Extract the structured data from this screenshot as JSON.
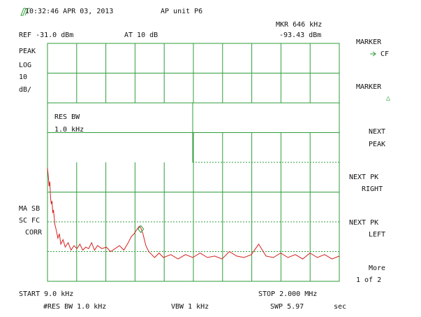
{
  "header": {
    "timestamp": "10:32:46 APR 03, 2013",
    "title": "AP unit P6",
    "marker_readout": "MKR 646 kHz",
    "ref": "REF -31.0 dBm",
    "atten": "AT 10 dB",
    "marker_level": "-93.43 dBm"
  },
  "left_labels": [
    "PEAK",
    "LOG",
    "10",
    "dB/",
    "MA SB",
    "SC FC",
    "CORR"
  ],
  "annotation": [
    "RES BW",
    "1.0 kHz"
  ],
  "softkeys": [
    [
      "MARKER",
      "CF"
    ],
    [
      "MARKER",
      "△"
    ],
    [
      "NEXT",
      "PEAK"
    ],
    [
      "NEXT PK",
      "RIGHT"
    ],
    [
      "NEXT PK",
      "LEFT"
    ],
    [
      "More",
      "1 of 2"
    ]
  ],
  "footer": {
    "start": "START 9.0 kHz",
    "stop": "STOP 2.000 MHz",
    "rbw": "#RES BW 1.0 kHz",
    "vbw": "VBW 1 kHz",
    "sweep": "SWP 5.97",
    "sweep_unit": "sec"
  },
  "trace": {
    "color": "#d42020",
    "xlim": [
      9,
      2000
    ],
    "ylim": [
      -111,
      -31
    ],
    "marker": {
      "x": 646,
      "y": -93.43
    },
    "x": [
      9,
      15,
      20,
      25,
      30,
      35,
      40,
      45,
      50,
      60,
      70,
      80,
      90,
      100,
      115,
      130,
      150,
      170,
      190,
      210,
      230,
      250,
      270,
      290,
      310,
      330,
      350,
      380,
      410,
      440,
      470,
      500,
      530,
      560,
      580,
      600,
      620,
      635,
      646,
      660,
      680,
      700,
      720,
      740,
      770,
      800,
      850,
      900,
      950,
      1000,
      1050,
      1100,
      1150,
      1200,
      1250,
      1300,
      1350,
      1400,
      1450,
      1500,
      1550,
      1600,
      1650,
      1700,
      1750,
      1800,
      1850,
      1900,
      1950,
      2000
    ],
    "values": [
      -72.9,
      -76,
      -79,
      -77.5,
      -83,
      -85,
      -84,
      -88,
      -87,
      -92,
      -94,
      -96.5,
      -95,
      -98.5,
      -97,
      -99.5,
      -98,
      -100.5,
      -99,
      -100,
      -98.5,
      -100.5,
      -99.5,
      -100,
      -98,
      -100.5,
      -99,
      -100,
      -99.5,
      -101,
      -100,
      -99,
      -100.5,
      -98,
      -96,
      -95,
      -93.5,
      -92.5,
      -93,
      -95,
      -99,
      -101,
      -102,
      -103,
      -101.5,
      -103,
      -102,
      -103.5,
      -102,
      -103,
      -101.5,
      -103,
      -102.5,
      -103.5,
      -101,
      -102.5,
      -103,
      -102,
      -98.5,
      -102.5,
      -103,
      -101.5,
      -103,
      -102,
      -103.5,
      -101.5,
      -103,
      -102,
      -103.5,
      -102.5
    ]
  }
}
